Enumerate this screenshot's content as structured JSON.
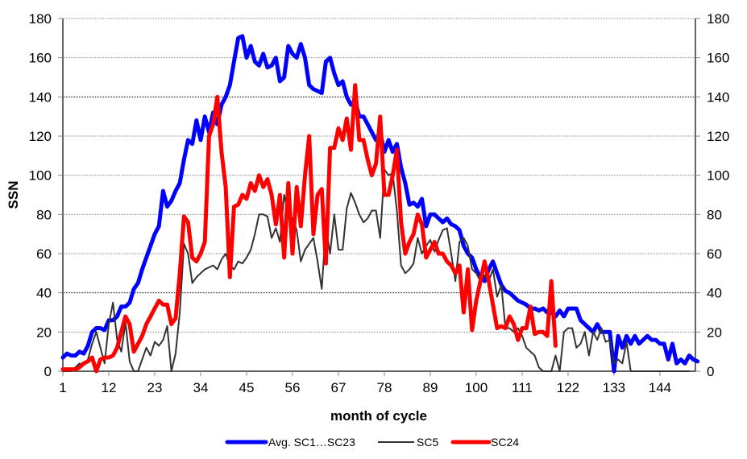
{
  "chart_data": {
    "type": "line",
    "title": "",
    "xlabel": "month of cycle",
    "ylabel": "SSN",
    "xlim": [
      1,
      152.5
    ],
    "ylim": [
      0,
      180
    ],
    "y_ticks": [
      0,
      20,
      40,
      60,
      80,
      100,
      120,
      140,
      160,
      180
    ],
    "y_tick_labels": [
      "0",
      "20",
      "40",
      "60",
      "80",
      "100",
      "120",
      "140",
      "160",
      "180"
    ],
    "x_ticks": [
      1,
      12,
      23,
      34,
      45,
      56,
      67,
      78,
      89,
      100,
      111,
      122,
      133,
      144
    ],
    "x_tick_labels": [
      "1",
      "12",
      "23",
      "34",
      "45",
      "56",
      "67",
      "78",
      "89",
      "100",
      "111",
      "122",
      "133",
      "144"
    ],
    "secondary_y_axis": true,
    "grid": true,
    "legend_position": "bottom",
    "series": [
      {
        "name": "Avg. SC1…SC23",
        "color": "#0000ff",
        "start_month": 1,
        "values": [
          7,
          9,
          8,
          8,
          10,
          9,
          13,
          20,
          22,
          22,
          21,
          26,
          26,
          28,
          33,
          33,
          35,
          42,
          45,
          52,
          58,
          64,
          70,
          74,
          92,
          84,
          87,
          92,
          96,
          108,
          118,
          116,
          128,
          118,
          130,
          122,
          132,
          126,
          136,
          140,
          146,
          158,
          170,
          171,
          160,
          166,
          158,
          156,
          162,
          155,
          156,
          160,
          148,
          150,
          166,
          162,
          160,
          167,
          160,
          146,
          144,
          143,
          142,
          158,
          160,
          152,
          146,
          148,
          140,
          136,
          138,
          130,
          130,
          126,
          122,
          118,
          122,
          112,
          118,
          112,
          116,
          104,
          96,
          85,
          86,
          84,
          88,
          74,
          80,
          80,
          78,
          76,
          78,
          75,
          74,
          72,
          64,
          60,
          58,
          52,
          48,
          46,
          52,
          56,
          50,
          44,
          41,
          40,
          38,
          36,
          35,
          34,
          32,
          32,
          31,
          32,
          30,
          30,
          28,
          31,
          28,
          32,
          32,
          32,
          26,
          24,
          22,
          20,
          24,
          20,
          20,
          20,
          0,
          18,
          12,
          18,
          14,
          18,
          14,
          16,
          18,
          16,
          16,
          14,
          14,
          6,
          14,
          4,
          6,
          4,
          8,
          6,
          5
        ],
        "width": "thick"
      },
      {
        "name": "SC5",
        "color": "#333333",
        "start_month": 1,
        "values": [
          0,
          0,
          0,
          2,
          4,
          3,
          6,
          14,
          20,
          12,
          4,
          24,
          35,
          16,
          10,
          25,
          5,
          0,
          0,
          6,
          12,
          8,
          15,
          13,
          16,
          23,
          0,
          9,
          30,
          65,
          60,
          45,
          48,
          50,
          52,
          53,
          54,
          52,
          57,
          60,
          54,
          52,
          56,
          55,
          58,
          62,
          70,
          80,
          80,
          79,
          68,
          73,
          66,
          90,
          80,
          78,
          72,
          56,
          62,
          65,
          68,
          56,
          42,
          74,
          60,
          80,
          62,
          62,
          83,
          91,
          86,
          80,
          76,
          78,
          82,
          82,
          68,
          103,
          100,
          101,
          82,
          54,
          50,
          52,
          55,
          68,
          60,
          64,
          67,
          61,
          67,
          72,
          73,
          60,
          46,
          66,
          68,
          64,
          52,
          50,
          46,
          49,
          46,
          52,
          38,
          44,
          22,
          22,
          20,
          22,
          18,
          12,
          10,
          8,
          2,
          0,
          0,
          0,
          8,
          0,
          20,
          22,
          22,
          12,
          14,
          20,
          8,
          20,
          16,
          22,
          15,
          16,
          4,
          6,
          4,
          15,
          0,
          0,
          0,
          0,
          0,
          0,
          0,
          0,
          0,
          0,
          0,
          0,
          0,
          0,
          0
        ],
        "width": "thin"
      },
      {
        "name": "SC24",
        "color": "#ff0000",
        "start_month": 1,
        "values": [
          1,
          1,
          1,
          1,
          2,
          4,
          5,
          7,
          0,
          6,
          7,
          7,
          8,
          12,
          20,
          28,
          24,
          10,
          14,
          18,
          24,
          28,
          32,
          36,
          34,
          34,
          24,
          27,
          50,
          79,
          76,
          58,
          56,
          60,
          66,
          120,
          126,
          140,
          112,
          94,
          48,
          84,
          85,
          90,
          88,
          96,
          92,
          100,
          94,
          98,
          90,
          75,
          90,
          58,
          96,
          60,
          94,
          74,
          100,
          120,
          70,
          90,
          93,
          55,
          114,
          114,
          124,
          118,
          129,
          113,
          146,
          118,
          118,
          108,
          100,
          106,
          130,
          90,
          90,
          100,
          113,
          76,
          60,
          66,
          70,
          80,
          75,
          58,
          62,
          66,
          60,
          60,
          56,
          54,
          50,
          54,
          30,
          52,
          21,
          36,
          46,
          56,
          46,
          34,
          22,
          23,
          22,
          28,
          24,
          16,
          22,
          22,
          33,
          19,
          20,
          20,
          18,
          46,
          13
        ],
        "width": "thick"
      }
    ]
  }
}
